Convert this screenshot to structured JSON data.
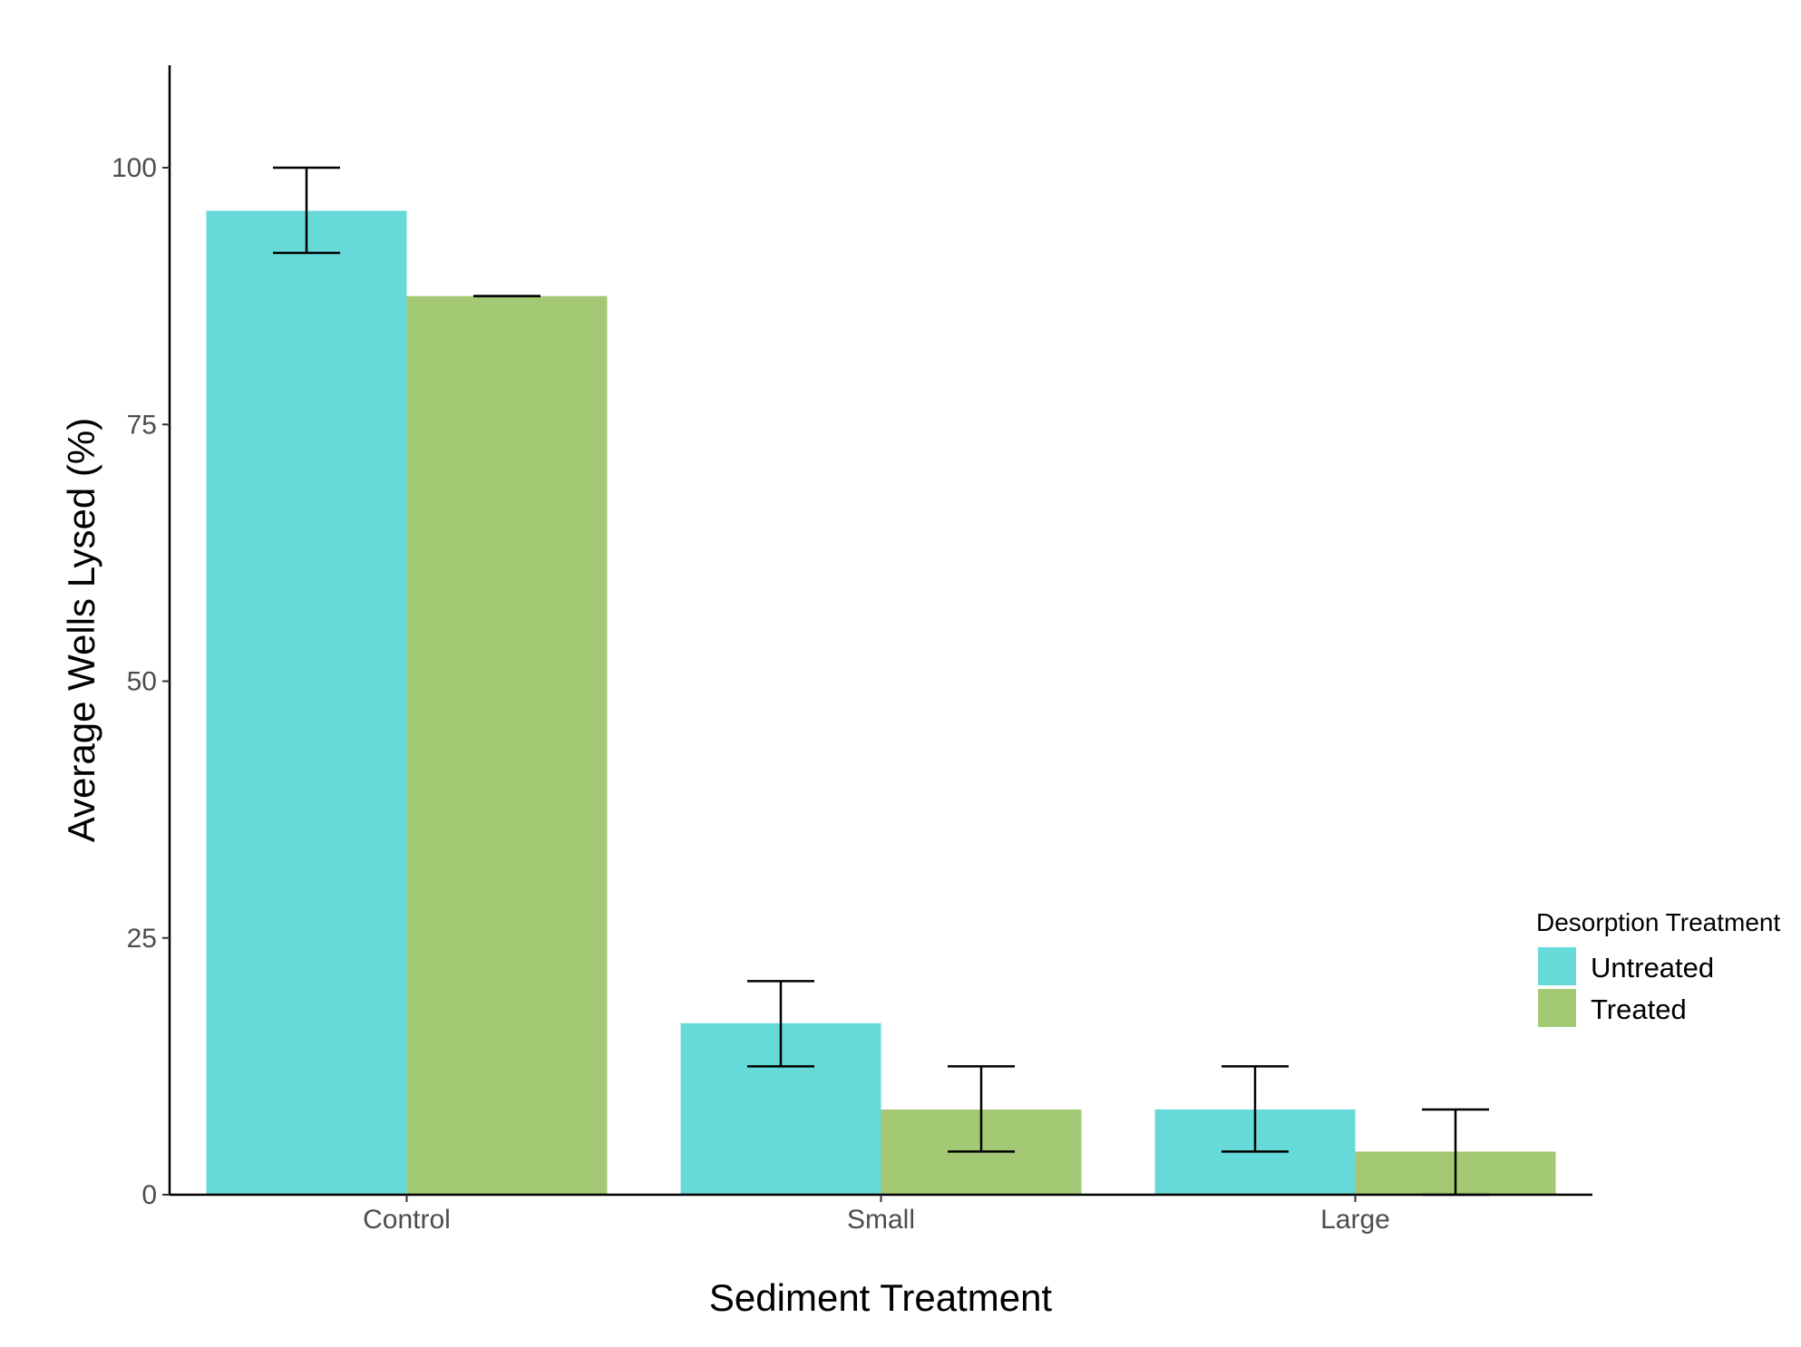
{
  "chart_data": {
    "type": "bar",
    "title": "",
    "xlabel": "Sediment Treatment",
    "ylabel": "Average Wells Lysed (%)",
    "categories": [
      "Control",
      "Small",
      "Large"
    ],
    "ylim": [
      0,
      110
    ],
    "yticks": [
      0,
      25,
      50,
      75,
      100
    ],
    "grid": false,
    "legend": {
      "title": "Desorption Treatment",
      "position": "right"
    },
    "series": [
      {
        "name": "Untreated",
        "color": "#66d9d9",
        "values": [
          95.8,
          16.7,
          8.3
        ],
        "error_low": [
          91.7,
          12.5,
          4.2
        ],
        "error_high": [
          100,
          20.8,
          12.5
        ]
      },
      {
        "name": "Treated",
        "color": "#a3c975",
        "values": [
          87.5,
          8.3,
          4.2
        ],
        "error_low": [
          87.5,
          4.2,
          0
        ],
        "error_high": [
          87.5,
          12.5,
          8.3
        ]
      }
    ]
  }
}
